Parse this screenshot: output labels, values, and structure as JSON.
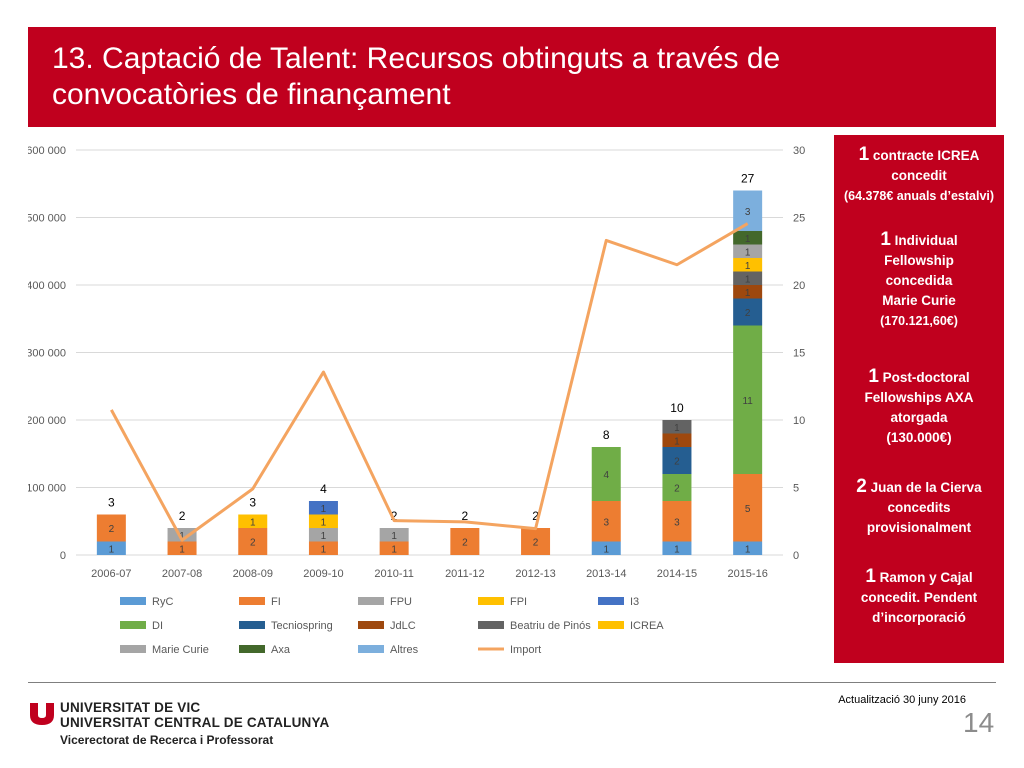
{
  "slide": {
    "title_line1": "13. Captació de Talent: Recursos obtinguts a través de",
    "title_line2": "convocatòries de finançament",
    "page_number": "14",
    "update_label": "Actualització 30 juny 2016"
  },
  "branding": {
    "university_line1": "UNIVERSITAT DE VIC",
    "university_line2": "UNIVERSITAT CENTRAL DE CATALUNYA",
    "vice_rectorate": "Vicerectorat de Recerca i Professorat",
    "brand_color": "#c0001e"
  },
  "notes": [
    {
      "number": "1",
      "line1": "contracte ICREA",
      "line2": "concedit",
      "small": "(64.378€ anuals d’estalvi)"
    },
    {
      "number": "1",
      "line1": "Individual",
      "line2": "Fellowship",
      "line3": "concedida",
      "line4": "Marie Curie",
      "small": "(170.121,60€)"
    },
    {
      "number": "1",
      "line1": "Post-doctoral",
      "line2": "Fellowships AXA",
      "line3": "atorgada",
      "line4": "(130.000€)"
    },
    {
      "number": "2",
      "line1": "Juan de la Cierva",
      "line2": "concedits",
      "line3": "provisionalment"
    },
    {
      "number": "1",
      "line1": "Ramon y Cajal",
      "line2": "concedit. Pendent",
      "line3": "d’incorporació"
    }
  ],
  "chart_data": {
    "type": "bar",
    "stacked": true,
    "combo_line_series": "Import",
    "categories": [
      "2006-07",
      "2007-08",
      "2008-09",
      "2009-10",
      "2010-11",
      "2011-12",
      "2012-13",
      "2013-14",
      "2014-15",
      "2015-16"
    ],
    "y_left_ticks": [
      "0",
      "100 000",
      "200 000",
      "300 000",
      "400 000",
      "500 000",
      "600 000"
    ],
    "y_left_lim": [
      0,
      600000
    ],
    "y_right_ticks": [
      "0",
      "5",
      "10",
      "15",
      "20",
      "25",
      "30"
    ],
    "y_right_lim": [
      0,
      30
    ],
    "totals": [
      3,
      2,
      3,
      4,
      2,
      2,
      2,
      8,
      10,
      27
    ],
    "series": [
      {
        "name": "RyC",
        "color": "#5b9bd5",
        "values": [
          1,
          0,
          0,
          0,
          0,
          0,
          0,
          1,
          1,
          1
        ]
      },
      {
        "name": "FI",
        "color": "#ed7d31",
        "values": [
          2,
          1,
          2,
          1,
          1,
          2,
          2,
          3,
          3,
          5
        ]
      },
      {
        "name": "FPU",
        "color": "#a5a5a5",
        "values": [
          0,
          1,
          0,
          1,
          1,
          0,
          0,
          0,
          0,
          0
        ]
      },
      {
        "name": "FPI",
        "color": "#ffc000",
        "values": [
          0,
          0,
          1,
          1,
          0,
          0,
          0,
          0,
          0,
          0
        ]
      },
      {
        "name": "I3",
        "color": "#4472c4",
        "values": [
          0,
          0,
          0,
          1,
          0,
          0,
          0,
          0,
          0,
          0
        ]
      },
      {
        "name": "DI",
        "color": "#70ad47",
        "values": [
          0,
          0,
          0,
          0,
          0,
          0,
          0,
          4,
          2,
          11
        ]
      },
      {
        "name": "Tecniospring",
        "color": "#255e91",
        "values": [
          0,
          0,
          0,
          0,
          0,
          0,
          0,
          0,
          2,
          2
        ]
      },
      {
        "name": "JdLC",
        "color": "#9e480e",
        "values": [
          0,
          0,
          0,
          0,
          0,
          0,
          0,
          0,
          1,
          1
        ]
      },
      {
        "name": "Beatriu de Pinós",
        "color": "#636363",
        "values": [
          0,
          0,
          0,
          0,
          0,
          0,
          0,
          0,
          1,
          1
        ]
      },
      {
        "name": "ICREA",
        "color": "#ffc000",
        "values": [
          0,
          0,
          0,
          0,
          0,
          0,
          0,
          0,
          0,
          1
        ]
      },
      {
        "name": "Marie Curie",
        "color": "#a5a5a5",
        "values": [
          0,
          0,
          0,
          0,
          0,
          0,
          0,
          0,
          0,
          1
        ]
      },
      {
        "name": "Axa",
        "color": "#43682b",
        "values": [
          0,
          0,
          0,
          0,
          0,
          0,
          0,
          0,
          0,
          1
        ]
      },
      {
        "name": "Altres",
        "color": "#7cafdd",
        "values": [
          0,
          0,
          0,
          0,
          0,
          0,
          0,
          0,
          0,
          3
        ]
      }
    ],
    "line": {
      "name": "Import",
      "color": "#f4a460",
      "values": [
        215000,
        22000,
        98000,
        271000,
        51000,
        49000,
        39000,
        466000,
        430000,
        491000
      ]
    },
    "legend": [
      "RyC",
      "FI",
      "FPU",
      "FPI",
      "I3",
      "DI",
      "Tecniospring",
      "JdLC",
      "Beatriu de Pinós",
      "ICREA",
      "Marie Curie",
      "Axa",
      "Altres",
      "Import"
    ],
    "legend_position": "bottom",
    "grid": true
  }
}
